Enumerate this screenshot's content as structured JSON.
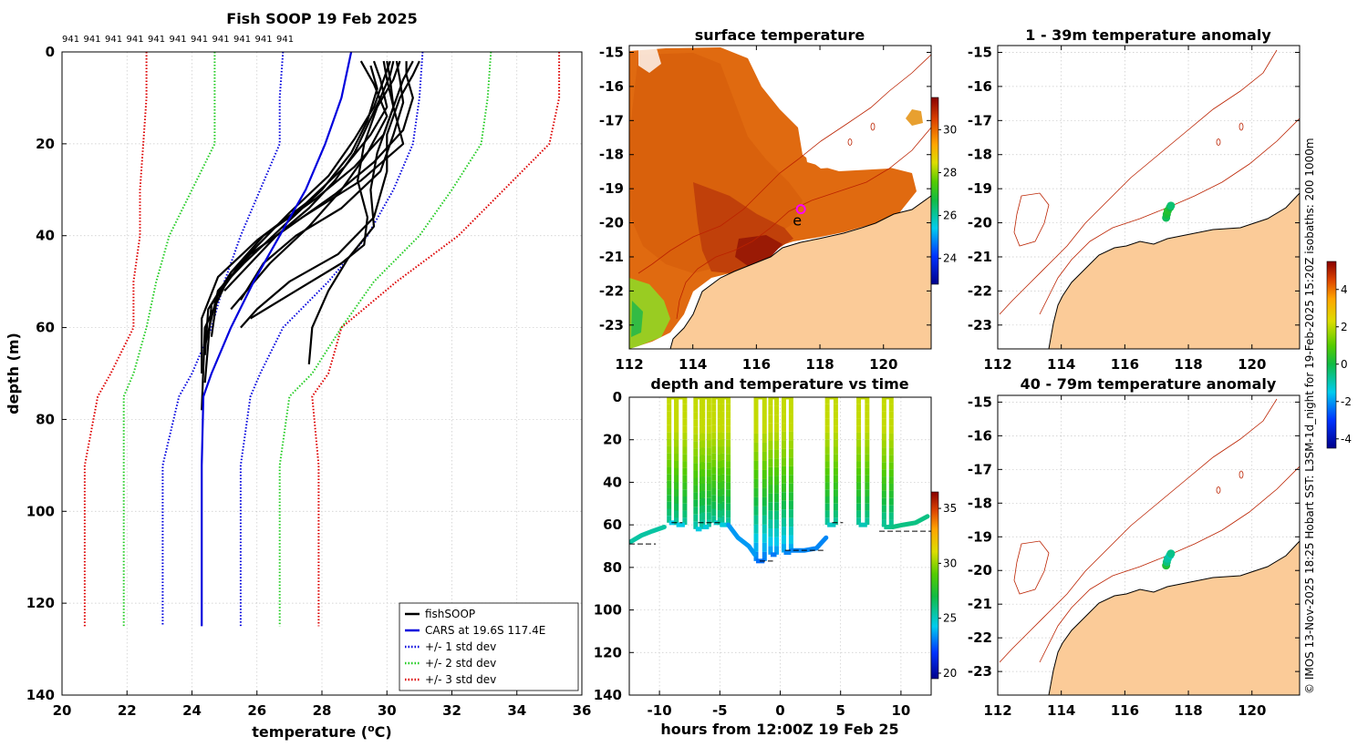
{
  "credit": "© IMOS 13-Nov-2025 18:25 Hobart SST: L3SM-1d_night for 19-Feb-2025 15:20Z isobaths: 200  1000m",
  "colors": {
    "fish": "#000000",
    "cars": "#0000dd",
    "std1": "#0000dd",
    "std2": "#22cc22",
    "std3": "#dd0000",
    "land": "#fbcb98",
    "coast": "#000000",
    "isobath": "#bb2200",
    "marker": "#ff00ff"
  },
  "chart_data": [
    {
      "id": "profile",
      "type": "line",
      "title": "Fish SOOP 19 Feb 2025",
      "xlabel": "temperature (°C)",
      "xlabel_main": "temperature (",
      "xlabel_sup": "o",
      "xlabel_tail": "C)",
      "ylabel": "depth (m)",
      "xlim": [
        20,
        36
      ],
      "ylim": [
        0,
        140
      ],
      "xticks": [
        20,
        22,
        24,
        26,
        28,
        30,
        32,
        34,
        36
      ],
      "yticks": [
        0,
        20,
        40,
        60,
        80,
        100,
        120,
        140
      ],
      "top_labels": [
        "941",
        "941",
        "941",
        "941",
        "941",
        "941",
        "941",
        "941",
        "941",
        "941",
        "941"
      ],
      "cars_depth": [
        0,
        10,
        20,
        30,
        40,
        50,
        60,
        70,
        75,
        90,
        125
      ],
      "cars_temp": [
        28.9,
        28.6,
        28.1,
        27.5,
        26.7,
        25.9,
        25.2,
        24.6,
        24.35,
        24.3,
        24.3
      ],
      "std_curves": [
        {
          "name": "+/- 1 std dev",
          "style": "std1",
          "left": [
            26.8,
            26.7,
            26.7,
            26.1,
            25.5,
            25.0,
            24.6,
            24.0,
            23.6,
            23.1,
            23.1
          ],
          "right": [
            31.1,
            31.0,
            30.8,
            30.2,
            29.4,
            28.2,
            26.8,
            26.1,
            25.8,
            25.5,
            25.5
          ]
        },
        {
          "name": "+/- 2 std dev",
          "style": "std2",
          "left": [
            24.7,
            24.7,
            24.7,
            24.0,
            23.3,
            22.9,
            22.6,
            22.2,
            21.9,
            21.9,
            21.9
          ],
          "right": [
            33.2,
            33.1,
            32.9,
            32.0,
            31.0,
            29.6,
            28.6,
            27.7,
            27.0,
            26.7,
            26.7
          ]
        },
        {
          "name": "+/- 3 std dev",
          "style": "std3",
          "left": [
            22.6,
            22.6,
            22.5,
            22.4,
            22.4,
            22.2,
            22.2,
            21.5,
            21.1,
            20.7,
            20.7
          ],
          "right": [
            35.3,
            35.3,
            35.0,
            33.6,
            32.2,
            30.3,
            28.6,
            28.2,
            27.7,
            27.9,
            27.9
          ]
        }
      ],
      "std_depth": [
        0,
        10,
        20,
        30,
        40,
        50,
        60,
        70,
        75,
        90,
        125
      ],
      "fish_profiles": [
        {
          "t": [
            30.0,
            30.1,
            30.2,
            29.9,
            29.0,
            27.8,
            26.2,
            25.2,
            24.4,
            24.3
          ],
          "d": [
            2,
            6,
            12,
            18,
            25,
            32,
            40,
            48,
            60,
            78
          ]
        },
        {
          "t": [
            30.6,
            30.6,
            30.8,
            30.5,
            29.6,
            28.4,
            27.0,
            25.6,
            24.6,
            24.4
          ],
          "d": [
            2,
            5,
            10,
            17,
            24,
            31,
            38,
            45,
            55,
            72
          ]
        },
        {
          "t": [
            29.6,
            29.8,
            30.0,
            29.5,
            28.7,
            27.5,
            26.0,
            24.8,
            24.3,
            24.3
          ],
          "d": [
            2,
            6,
            12,
            18,
            25,
            33,
            41,
            49,
            58,
            70
          ]
        },
        {
          "t": [
            30.3,
            30.4,
            30.5,
            30.2,
            29.8,
            28.6,
            27.2,
            26.2,
            25.5
          ],
          "d": [
            2,
            6,
            11,
            18,
            26,
            34,
            40,
            46,
            54
          ]
        },
        {
          "t": [
            31.0,
            30.8,
            30.4,
            30.0,
            30.0,
            29.6,
            28.5,
            27.0,
            26.0,
            25.5
          ],
          "d": [
            2,
            5,
            10,
            18,
            26,
            36,
            44,
            50,
            56,
            60
          ]
        },
        {
          "t": [
            29.9,
            30.0,
            30.2,
            30.5,
            29.2,
            27.4,
            25.8,
            24.8,
            24.4
          ],
          "d": [
            2,
            6,
            12,
            20,
            28,
            36,
            44,
            52,
            64
          ]
        },
        {
          "t": [
            30.4,
            30.2,
            29.7,
            29.3,
            29.1,
            29.4,
            29.3,
            28.6,
            27.2,
            25.8
          ],
          "d": [
            2,
            6,
            12,
            20,
            28,
            36,
            42,
            46,
            52,
            58
          ]
        },
        {
          "t": [
            29.2,
            29.6,
            30.0,
            29.4,
            28.6,
            27.6,
            26.4,
            25.2
          ],
          "d": [
            2,
            7,
            14,
            22,
            30,
            38,
            46,
            56
          ]
        },
        {
          "t": [
            30.8,
            30.5,
            30.1,
            29.7,
            29.5,
            29.6,
            28.8,
            28.2,
            27.7,
            27.6
          ],
          "d": [
            2,
            6,
            14,
            22,
            30,
            38,
            45,
            52,
            60,
            68
          ]
        },
        {
          "t": [
            29.5,
            29.7,
            29.4,
            28.9,
            28.0,
            26.8,
            25.6,
            24.8,
            24.6
          ],
          "d": [
            3,
            8,
            15,
            22,
            30,
            38,
            46,
            52,
            62
          ]
        },
        {
          "t": [
            30.1,
            29.9,
            29.6,
            29.0,
            28.2,
            27.0,
            25.9,
            25.2,
            24.5,
            24.4
          ],
          "d": [
            2,
            6,
            12,
            19,
            27,
            35,
            43,
            48,
            56,
            66
          ]
        },
        {
          "t": [
            30.2,
            30.1,
            29.8,
            29.4,
            29.0,
            28.4,
            27.6,
            26.6,
            25.8,
            25.0
          ],
          "d": [
            2,
            5,
            10,
            16,
            22,
            28,
            34,
            40,
            46,
            52
          ]
        }
      ],
      "legend": [
        {
          "label": "fishSOOP",
          "style": "fish"
        },
        {
          "label": "CARS at 19.6S 117.4E",
          "style": "cars"
        },
        {
          "label": "+/- 1 std dev",
          "style": "std1"
        },
        {
          "label": "+/- 2 std dev",
          "style": "std2"
        },
        {
          "label": "+/- 3 std dev",
          "style": "std3"
        }
      ]
    },
    {
      "id": "sst_map",
      "type": "heatmap",
      "title": "surface temperature",
      "xlim": [
        112,
        121.5
      ],
      "ylim": [
        -23.7,
        -14.8
      ],
      "xticks": [
        112,
        114,
        116,
        118,
        120
      ],
      "yticks": [
        -15,
        -16,
        -17,
        -18,
        -19,
        -20,
        -21,
        -22,
        -23
      ],
      "colorbar": {
        "range": [
          22.8,
          31.5
        ],
        "ticks": [
          24,
          26,
          28,
          30
        ]
      },
      "station_marker": {
        "lon": 117.4,
        "lat": -19.6
      },
      "glyph": "e"
    },
    {
      "id": "anom_map_1",
      "type": "scatter",
      "title": "1 - 39m temperature anomaly",
      "xlim": [
        112,
        121.5
      ],
      "ylim": [
        -23.7,
        -14.8
      ],
      "xticks": [
        112,
        114,
        116,
        118,
        120
      ],
      "yticks": [
        -15,
        -16,
        -17,
        -18,
        -19,
        -20,
        -21,
        -22,
        -23
      ],
      "points": [
        {
          "lon": 117.3,
          "lat": -19.85,
          "value": -0.2
        },
        {
          "lon": 117.32,
          "lat": -19.75,
          "value": 0.1
        },
        {
          "lon": 117.35,
          "lat": -19.65,
          "value": 0.3
        },
        {
          "lon": 117.42,
          "lat": -19.55,
          "value": 0.0
        },
        {
          "lon": 117.45,
          "lat": -19.5,
          "value": -0.4
        }
      ]
    },
    {
      "id": "anom_map_2",
      "type": "scatter",
      "title": "40 - 79m temperature anomaly",
      "xlim": [
        112,
        121.5
      ],
      "ylim": [
        -23.7,
        -14.8
      ],
      "xticks": [
        112,
        114,
        116,
        118,
        120
      ],
      "yticks": [
        -15,
        -16,
        -17,
        -18,
        -19,
        -20,
        -21,
        -22,
        -23
      ],
      "colorbar": {
        "range": [
          -4.5,
          5.5
        ],
        "ticks": [
          4,
          2,
          0,
          -2,
          -4
        ]
      },
      "points": [
        {
          "lon": 117.3,
          "lat": -19.85,
          "value": 0.2
        },
        {
          "lon": 117.32,
          "lat": -19.75,
          "value": -0.5
        },
        {
          "lon": 117.35,
          "lat": -19.65,
          "value": -0.8
        },
        {
          "lon": 117.42,
          "lat": -19.55,
          "value": -1.0
        },
        {
          "lon": 117.45,
          "lat": -19.5,
          "value": -0.6
        }
      ]
    },
    {
      "id": "time_depth",
      "type": "scatter",
      "title": "depth and temperature vs time",
      "xlabel": "hours from 12:00Z 19 Feb 25",
      "xlim": [
        -12.5,
        12.5
      ],
      "ylim": [
        0,
        140
      ],
      "xticks": [
        -10,
        -5,
        0,
        5,
        10
      ],
      "yticks": [
        0,
        20,
        40,
        60,
        80,
        100,
        120,
        140
      ],
      "colorbar": {
        "range": [
          19.5,
          36.5
        ],
        "ticks": [
          20,
          25,
          30,
          35
        ]
      },
      "dives": [
        {
          "t0": -9.2,
          "t1": -8.6,
          "bottom": 59,
          "tb": 24.3
        },
        {
          "t0": -8.6,
          "t1": -7.9,
          "bottom": 60,
          "tb": 24.4
        },
        {
          "t0": -7.0,
          "t1": -6.5,
          "bottom": 62,
          "tb": 24.5
        },
        {
          "t0": -6.4,
          "t1": -5.9,
          "bottom": 61,
          "tb": 24.6
        },
        {
          "t0": -5.5,
          "t1": -4.8,
          "bottom": 59,
          "tb": 24.8
        },
        {
          "t0": -5.0,
          "t1": -4.3,
          "bottom": 60,
          "tb": 24.6
        },
        {
          "t0": -2.0,
          "t1": -1.3,
          "bottom": 77,
          "tb": 22.8
        },
        {
          "t0": -0.8,
          "t1": -0.3,
          "bottom": 74,
          "tb": 23.0
        },
        {
          "t0": 0.3,
          "t1": 0.9,
          "bottom": 73,
          "tb": 23.2
        },
        {
          "t0": 3.9,
          "t1": 4.6,
          "bottom": 60,
          "tb": 25.0
        },
        {
          "t0": 6.5,
          "t1": 7.2,
          "bottom": 60,
          "tb": 25.2
        },
        {
          "t0": 8.6,
          "t1": 9.2,
          "bottom": 61,
          "tb": 25.8
        }
      ],
      "bottom_tracks": [
        {
          "t": [
            -12.4,
            -11.5,
            -10.6,
            -9.6
          ],
          "d": [
            68,
            65,
            63,
            61
          ],
          "tb": 25.5
        },
        {
          "t": [
            -4.3,
            -3.5,
            -2.6,
            -2.1
          ],
          "d": [
            60,
            66,
            70,
            74
          ],
          "tb": 23.5
        },
        {
          "t": [
            0.9,
            2.0,
            3.0,
            3.8
          ],
          "d": [
            72,
            72,
            71,
            66
          ],
          "tb": 23.2
        },
        {
          "t": [
            9.3,
            10.2,
            11.2,
            12.2
          ],
          "d": [
            61,
            60,
            59,
            56
          ],
          "tb": 26.0
        }
      ],
      "bottom_markers": [
        {
          "t0": -12.5,
          "t1": -10.3,
          "d": 69
        },
        {
          "t0": -9.0,
          "t1": -8.1,
          "d": 59
        },
        {
          "t0": -6.8,
          "t1": -4.8,
          "d": 59
        },
        {
          "t0": -1.7,
          "t1": -0.6,
          "d": 77
        },
        {
          "t0": 0.4,
          "t1": 3.8,
          "d": 72
        },
        {
          "t0": 4.3,
          "t1": 5.2,
          "d": 59
        },
        {
          "t0": 8.2,
          "t1": 12.5,
          "d": 63
        }
      ]
    }
  ]
}
